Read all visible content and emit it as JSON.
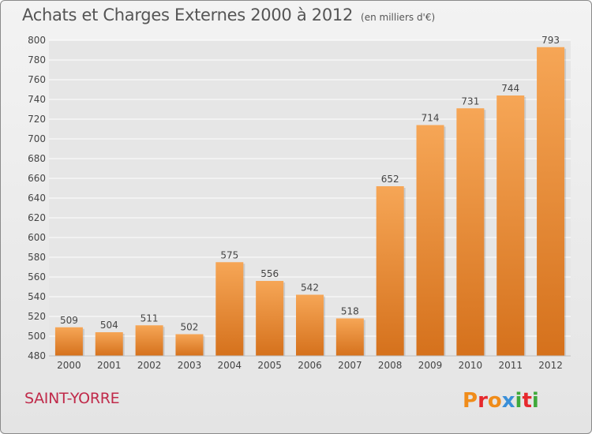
{
  "header": {
    "title": "Achats et Charges Externes 2000 à 2012",
    "subtitle": "(en milliers d'€)"
  },
  "footer": {
    "commune": "SAINT-YORRE",
    "logo_text": "Proxiti"
  },
  "colors": {
    "bar_light": "#f6a656",
    "bar_dark": "#d5711c",
    "grid": "#ffffff",
    "axis_text": "#444444",
    "logo": [
      "#f08c1a",
      "#e6292d",
      "#f08c1a",
      "#3a8fd8",
      "#3fa93b",
      "#e6292d",
      "#3fa93b"
    ]
  },
  "chart_data": {
    "type": "bar",
    "categories": [
      "2000",
      "2001",
      "2002",
      "2003",
      "2004",
      "2005",
      "2006",
      "2007",
      "2008",
      "2009",
      "2010",
      "2011",
      "2012"
    ],
    "values": [
      509,
      504,
      511,
      502,
      575,
      556,
      542,
      518,
      652,
      714,
      731,
      744,
      793
    ],
    "ylim": [
      480,
      800
    ],
    "yticks": [
      480,
      500,
      520,
      540,
      560,
      580,
      600,
      620,
      640,
      660,
      680,
      700,
      720,
      740,
      760,
      780,
      800
    ],
    "xlabel": "",
    "ylabel": "",
    "grid": true
  }
}
